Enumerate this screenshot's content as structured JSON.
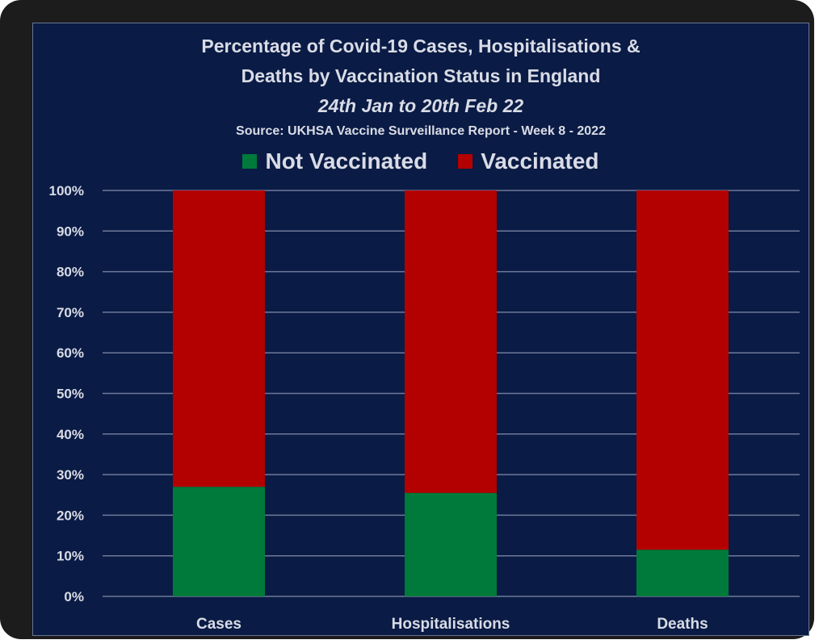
{
  "chart_data": {
    "type": "bar",
    "stacked": true,
    "title_lines": [
      "Percentage of Covid-19 Cases, Hospitalisations &",
      "Deaths by Vaccination Status in England"
    ],
    "subtitle": "24th Jan to 20th Feb 22",
    "source": "Source: UKHSA Vaccine Surveillance Report - Week 8 - 2022",
    "categories": [
      "Cases",
      "Hospitalisations",
      "Deaths"
    ],
    "series": [
      {
        "name": "Not Vaccinated",
        "color": "#007a3a",
        "values": [
          27,
          25.5,
          11.5
        ]
      },
      {
        "name": "Vaccinated",
        "color": "#b30000",
        "values": [
          73,
          74.5,
          88.5
        ]
      }
    ],
    "ylim": [
      0,
      100
    ],
    "yticks": [
      "0%",
      "10%",
      "20%",
      "30%",
      "40%",
      "50%",
      "60%",
      "70%",
      "80%",
      "90%",
      "100%"
    ],
    "grid": true,
    "legend_position": "top-center",
    "background": "#0a1b45",
    "gridline_color": "#6e7a9a",
    "text_color": "#d9dce6"
  }
}
